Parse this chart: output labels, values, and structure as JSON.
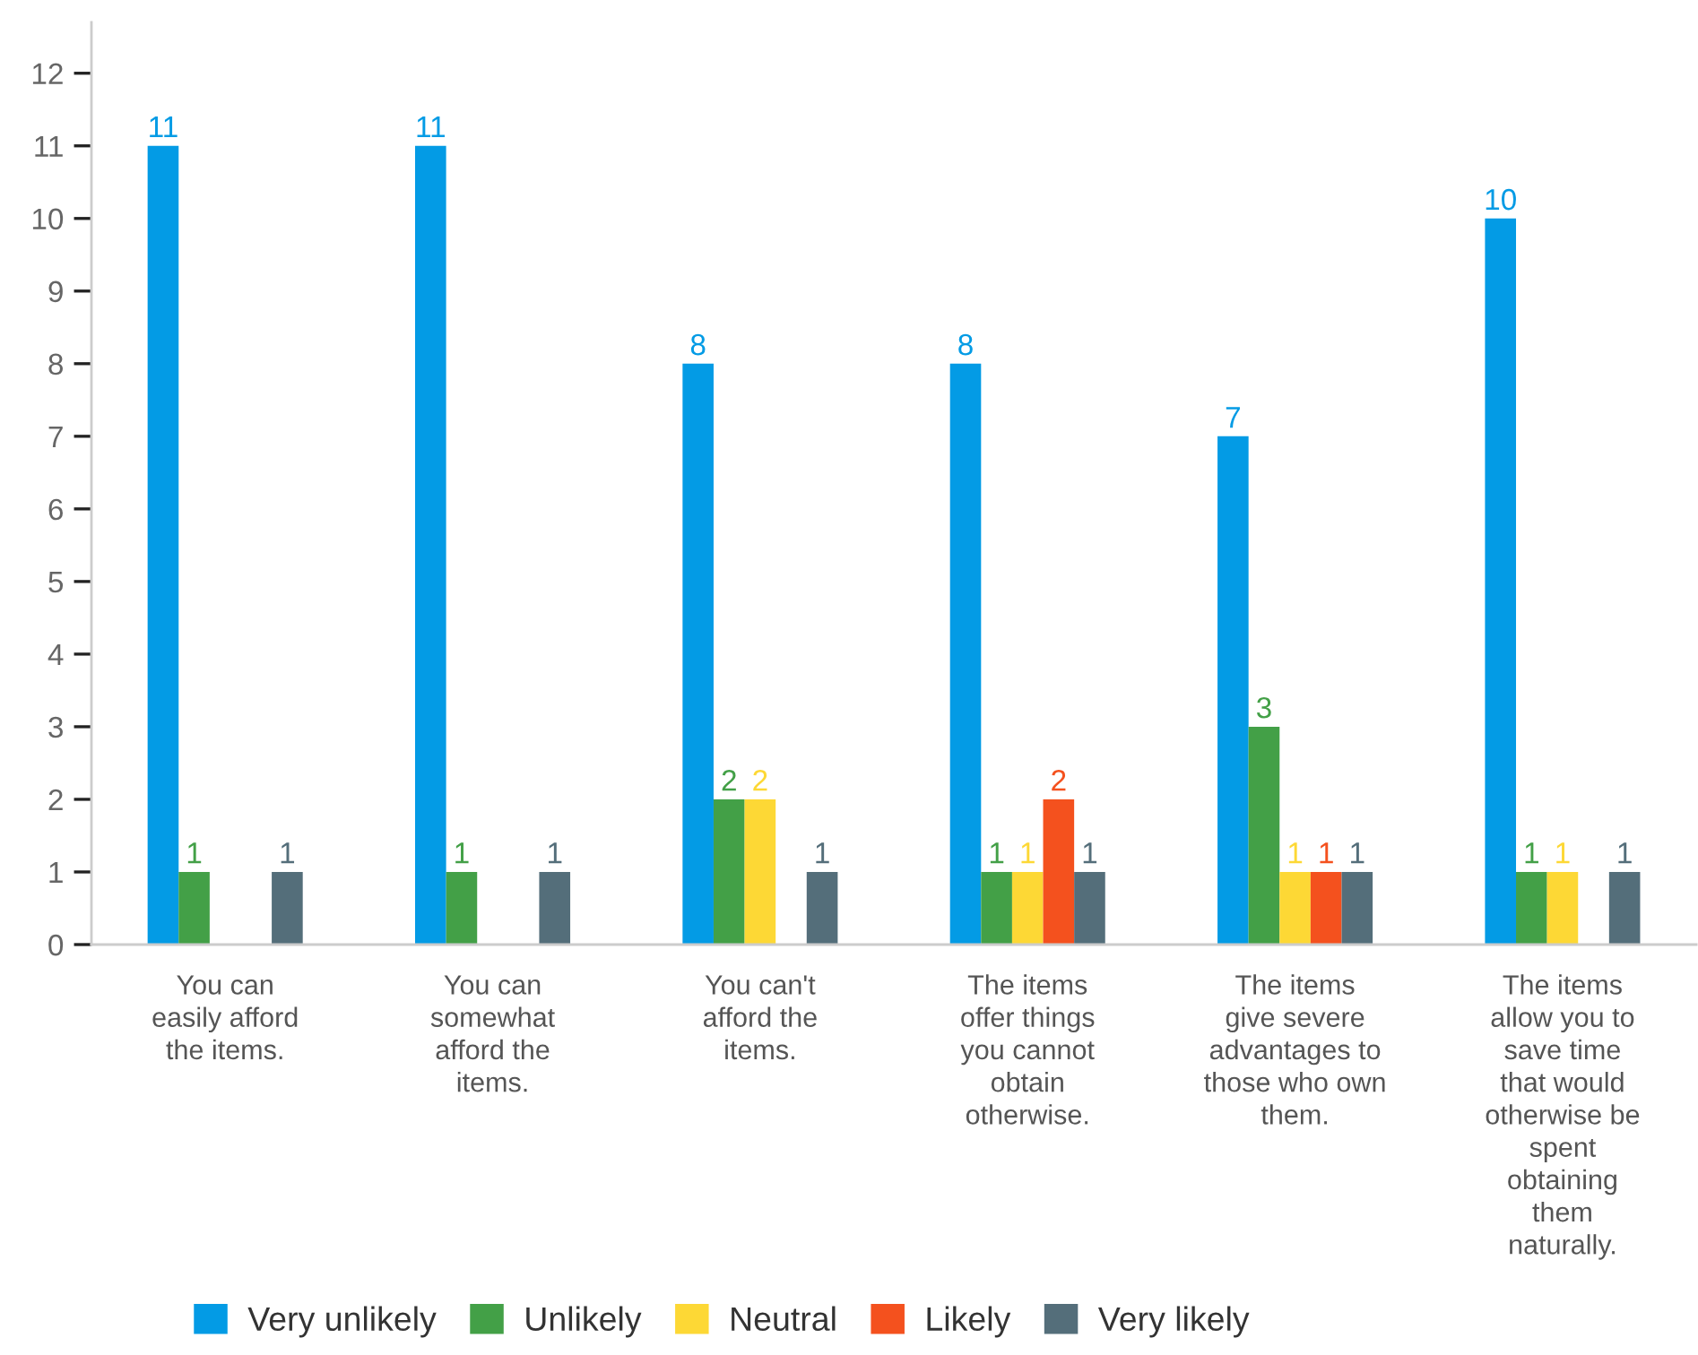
{
  "chart_data": {
    "type": "bar",
    "categories": [
      "You can\neasily afford\nthe items.",
      "You can\nsomewhat\nafford the\nitems.",
      "You can't\nafford the\nitems.",
      "The items\noffer things\nyou cannot\nobtain\notherwise.",
      "The items\ngive severe\nadvantages to\nthose who own\nthem.",
      "The items\nallow you to\nsave time\nthat would\notherwise be\nspent\nobtaining\nthem\nnaturally."
    ],
    "series": [
      {
        "name": "Very unlikely",
        "color": "#039be5",
        "values": [
          11,
          11,
          8,
          8,
          7,
          10
        ]
      },
      {
        "name": "Unlikely",
        "color": "#43a047",
        "values": [
          1,
          1,
          2,
          1,
          3,
          1
        ]
      },
      {
        "name": "Neutral",
        "color": "#fdd835",
        "values": [
          null,
          null,
          2,
          1,
          1,
          1
        ]
      },
      {
        "name": "Likely",
        "color": "#f4511e",
        "values": [
          null,
          null,
          null,
          2,
          1,
          null
        ]
      },
      {
        "name": "Very likely",
        "color": "#546e7a",
        "values": [
          1,
          1,
          1,
          1,
          1,
          1
        ]
      }
    ],
    "ylim": [
      0,
      12.7
    ],
    "yticks": [
      0,
      1,
      2,
      3,
      4,
      5,
      6,
      7,
      8,
      9,
      10,
      11,
      12
    ],
    "data_labels": true,
    "legend": "bottom",
    "grid": false
  }
}
